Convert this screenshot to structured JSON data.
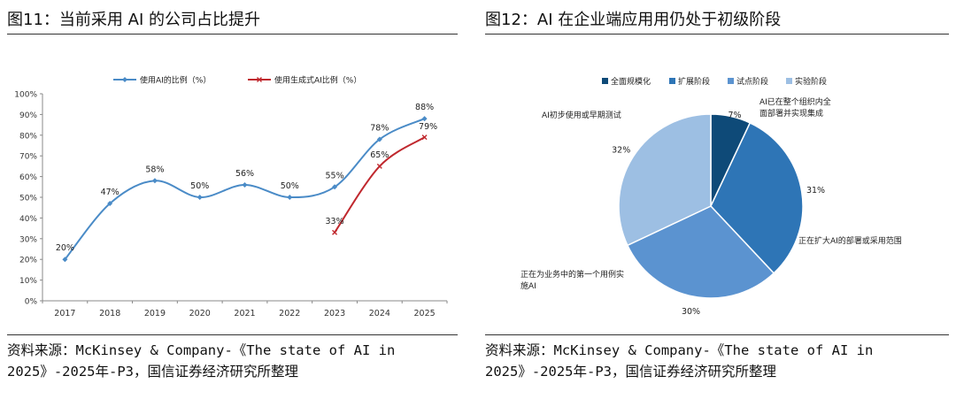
{
  "left": {
    "title": "图11：当前采用 AI 的公司占比提升",
    "source": "资料来源：McKinsey & Company-《The state of AI in 2025》-2025年-P3，国信证券经济研究所整理"
  },
  "right": {
    "title": "图12：AI 在企业端应用用仍处于初级阶段",
    "source": "资料来源：McKinsey & Company-《The state of AI in 2025》-2025年-P3，国信证券经济研究所整理"
  },
  "chart_data": [
    {
      "type": "line",
      "x": [
        "2017",
        "2018",
        "2019",
        "2020",
        "2021",
        "2022",
        "2023",
        "2024",
        "2025"
      ],
      "yticks": [
        "0%",
        "10%",
        "20%",
        "30%",
        "40%",
        "50%",
        "60%",
        "70%",
        "80%",
        "90%",
        "100%"
      ],
      "ylim": [
        0,
        100
      ],
      "legend_position": "top",
      "series": [
        {
          "name": "使用AI的比例（%）",
          "color": "#4a8bc7",
          "values": [
            20,
            47,
            58,
            50,
            56,
            50,
            55,
            78,
            88
          ],
          "labels": [
            "20%",
            "47%",
            "58%",
            "50%",
            "56%",
            "50%",
            "55%",
            "78%",
            "88%"
          ]
        },
        {
          "name": "使用生成式AI比例（%）",
          "color": "#c0282e",
          "values": [
            null,
            null,
            null,
            null,
            null,
            null,
            33,
            65,
            79
          ],
          "labels": [
            "",
            "",
            "",
            "",
            "",
            "",
            "33%",
            "65%",
            "79%"
          ]
        }
      ]
    },
    {
      "type": "pie",
      "legend_position": "top",
      "categories": [
        "全面规模化",
        "扩展阶段",
        "试点阶段",
        "实验阶段"
      ],
      "values": [
        7,
        31,
        30,
        32
      ],
      "value_labels": [
        "7%",
        "31%",
        "30%",
        "32%"
      ],
      "colors": [
        "#0e4a78",
        "#2e75b6",
        "#5b93d0",
        "#9dbfe3"
      ],
      "annotations": [
        "AI已在整个组织内全面部署并实现集成",
        "正在扩大AI的部署或采用范围",
        "正在为业务中的第一个用例实施AI",
        "AI初步使用或早期测试"
      ]
    }
  ]
}
